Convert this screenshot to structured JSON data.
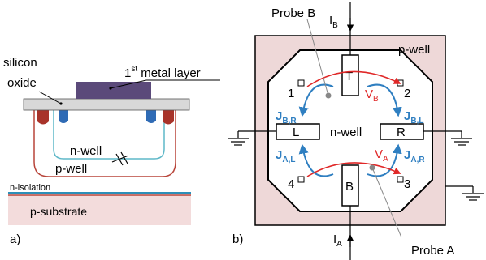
{
  "colors": {
    "oxide": "#d8d8d8",
    "metal": "#5b4a7a",
    "nwell_line": "#5fb8c8",
    "pwell_line": "#b8453a",
    "contact_blue": "#2f6bb5",
    "contact_red": "#a8332a",
    "pwell_fill": "#eed8d8",
    "substrate_fill": "#f3dcdc",
    "isolation_line": "#2d8fb8",
    "current_blue": "#2f7fc1",
    "voltage_red": "#e02828",
    "line": "#000000"
  },
  "panel_a": {
    "tag": "a)",
    "silicon_oxide_label_line1": "silicon",
    "silicon_oxide_label_line2": "oxide",
    "metal_layer_prefix": "1",
    "metal_layer_sup": "st",
    "metal_layer_suffix": " metal layer",
    "n_well_label": "n-well",
    "p_well_label": "p-well",
    "n_isolation_label": "n-isolation",
    "p_substrate_label": "p-substrate"
  },
  "panel_b": {
    "tag": "b)",
    "probe_b_label": "Probe B",
    "probe_a_label": "Probe A",
    "current_b_main": "I",
    "current_b_sub": "B",
    "current_a_main": "I",
    "current_a_sub": "A",
    "p_well_label": "p-well",
    "n_well_label": "n-well",
    "contact_top": "T",
    "contact_left": "L",
    "contact_right": "R",
    "contact_bottom": "B",
    "corner_1": "1",
    "corner_2": "2",
    "corner_3": "3",
    "corner_4": "4",
    "voltage_b_main": "V",
    "voltage_b_sub": "B",
    "voltage_a_main": "V",
    "voltage_a_sub": "A",
    "j_b_r_main": "J",
    "j_b_r_sub": "B,R",
    "j_b_l_main": "J",
    "j_b_l_sub": "B,L",
    "j_a_l_main": "J",
    "j_a_l_sub": "A,L",
    "j_a_r_main": "J",
    "j_a_r_sub": "A,R"
  }
}
